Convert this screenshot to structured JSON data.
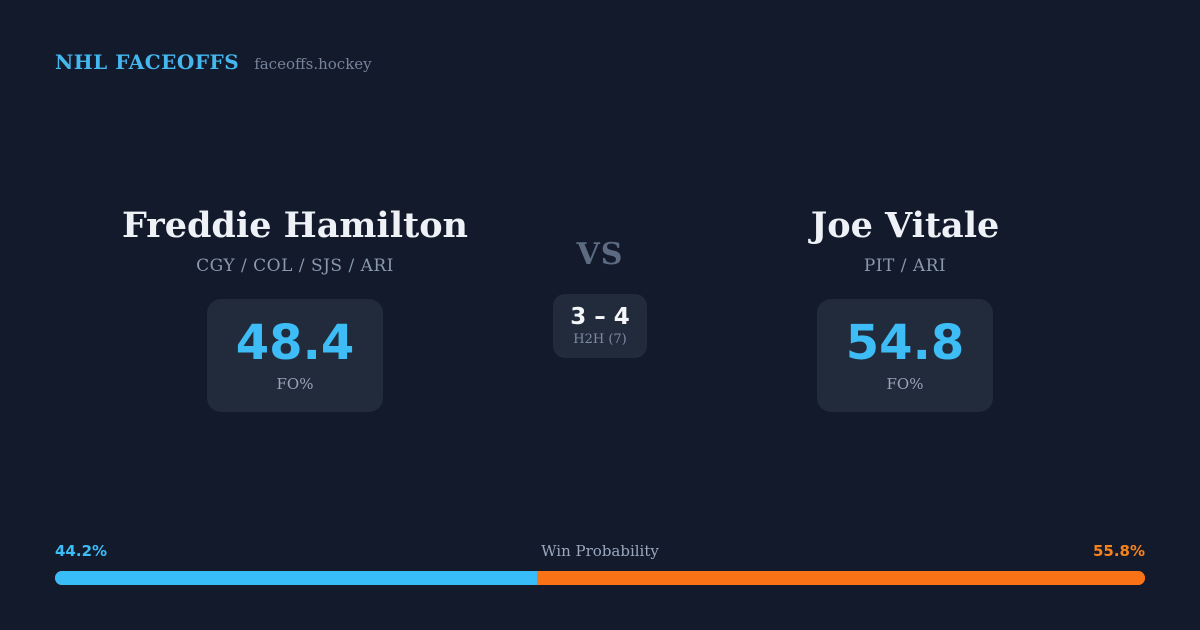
{
  "header": {
    "brand": "NHL FACEOFFS",
    "site": "faceoffs.hockey"
  },
  "matchup": {
    "vs_label": "VS",
    "left_player": {
      "name": "Freddie Hamilton",
      "teams": "CGY / COL / SJS / ARI",
      "stat_value": "48.4",
      "stat_label": "FO%"
    },
    "right_player": {
      "name": "Joe Vitale",
      "teams": "PIT / ARI",
      "stat_value": "54.8",
      "stat_label": "FO%"
    },
    "h2h": {
      "score": "3 – 4",
      "label": "H2H (7)"
    }
  },
  "win_probability": {
    "title": "Win Probability",
    "left_pct_label": "44.2%",
    "right_pct_label": "55.8%",
    "left_value": 44.2,
    "right_value": 55.8
  },
  "colors": {
    "background": "#121a2b",
    "card": "#222b3b",
    "accent_blue": "#3dbcf6",
    "accent_orange": "#f97316",
    "bar_blue": "#38bdf8",
    "brand_blue": "#45b7ef",
    "name_white": "#eef1f6",
    "muted_slate": "#8a99b0"
  },
  "chart_data": {
    "type": "bar",
    "subtype": "horizontal-stacked",
    "title": "Win Probability",
    "categories": [
      "Freddie Hamilton",
      "Joe Vitale"
    ],
    "values": [
      44.2,
      55.8
    ],
    "unit": "%",
    "value_labels": [
      "44.2%",
      "55.8%"
    ],
    "colors": [
      "#38bdf8",
      "#f97316"
    ],
    "xlim": [
      0,
      100
    ],
    "grid": false,
    "legend": false,
    "related_stats": {
      "faceoff_pct": {
        "Freddie Hamilton": 48.4,
        "Joe Vitale": 54.8
      },
      "head_to_head": {
        "score": "3 – 4",
        "games": 7
      }
    }
  }
}
